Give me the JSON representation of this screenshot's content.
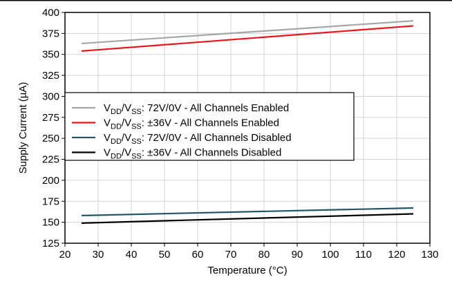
{
  "chart_data": {
    "type": "line",
    "xlabel": "Temperature (°C)",
    "ylabel": "Supply Current (µA)",
    "xlim": [
      20,
      130
    ],
    "ylim": [
      125,
      400
    ],
    "xticks": [
      "20",
      "30",
      "40",
      "50",
      "60",
      "70",
      "80",
      "90",
      "100",
      "110",
      "120",
      "130"
    ],
    "yticks": [
      "125",
      "150",
      "175",
      "200",
      "225",
      "250",
      "275",
      "300",
      "325",
      "350",
      "375",
      "400"
    ],
    "grid": true,
    "legend_position": "center-left",
    "series": [
      {
        "name": "VDD/VSS: 72V/0V - All Channels Enabled",
        "legend_prefix_main1": "V",
        "legend_sub1": "DD",
        "legend_slash": "/V",
        "legend_sub2": "SS",
        "legend_rest": ": 72V/0V - All Channels Enabled",
        "color": "#a6a6a6",
        "x": [
          25,
          125
        ],
        "y": [
          363,
          390
        ]
      },
      {
        "name": "VDD/VSS: ±36V - All Channels Enabled",
        "legend_prefix_main1": "V",
        "legend_sub1": "DD",
        "legend_slash": "/V",
        "legend_sub2": "SS",
        "legend_rest": ": ±36V    - All Channels Enabled",
        "color": "#e8141a",
        "x": [
          25,
          125
        ],
        "y": [
          354,
          384
        ]
      },
      {
        "name": "VDD/VSS: 72V/0V - All Channels Disabled",
        "legend_prefix_main1": "V",
        "legend_sub1": "DD",
        "legend_slash": "/V",
        "legend_sub2": "SS",
        "legend_rest": ": 72V/0V - All Channels Disabled",
        "color": "#1f5566",
        "x": [
          25,
          125
        ],
        "y": [
          158,
          167
        ]
      },
      {
        "name": "VDD/VSS: ±36V - All Channels Disabled",
        "legend_prefix_main1": "V",
        "legend_sub1": "DD",
        "legend_slash": "/V",
        "legend_sub2": "SS",
        "legend_rest": ": ±36V    - All Channels Disabled",
        "color": "#000000",
        "x": [
          25,
          125
        ],
        "y": [
          149,
          160
        ]
      }
    ]
  }
}
